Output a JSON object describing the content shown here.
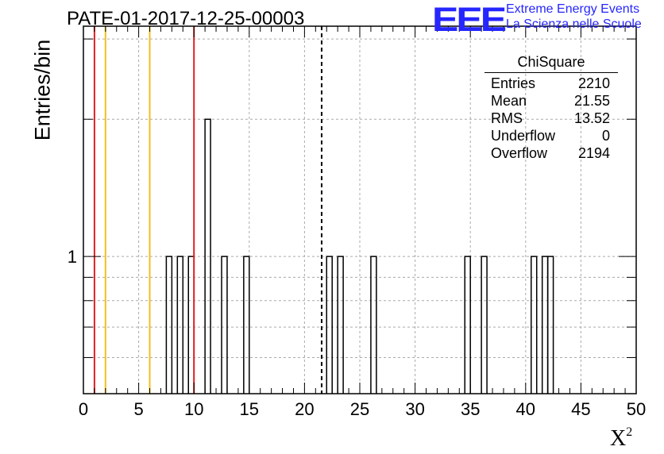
{
  "chart_data": {
    "type": "bar",
    "title": "PATE-01-2017-12-25-00003",
    "xlabel": "X",
    "xlabel_superscript": "2",
    "ylabel": "Entries/bin",
    "xlim": [
      0,
      50
    ],
    "ylog": true,
    "ylim": [
      0.5,
      3.2
    ],
    "x_ticks": [
      "0",
      "5",
      "10",
      "15",
      "20",
      "25",
      "30",
      "35",
      "40",
      "45",
      "50"
    ],
    "y_ticks": [
      "1"
    ],
    "grid": true,
    "bin_width": 0.5,
    "bins": [
      {
        "x0": 7.5,
        "value": 1
      },
      {
        "x0": 8.5,
        "value": 1
      },
      {
        "x0": 9.5,
        "value": 1
      },
      {
        "x0": 11.0,
        "value": 2
      },
      {
        "x0": 12.5,
        "value": 1
      },
      {
        "x0": 14.5,
        "value": 1
      },
      {
        "x0": 22.0,
        "value": 1
      },
      {
        "x0": 23.0,
        "value": 1
      },
      {
        "x0": 26.0,
        "value": 1
      },
      {
        "x0": 34.5,
        "value": 1
      },
      {
        "x0": 36.0,
        "value": 1
      },
      {
        "x0": 40.5,
        "value": 1
      },
      {
        "x0": 41.5,
        "value": 1
      },
      {
        "x0": 42.0,
        "value": 1
      }
    ],
    "vertical_lines": [
      {
        "x": 1,
        "color": "#dd2222",
        "style": "solid"
      },
      {
        "x": 2,
        "color": "#f0c020",
        "style": "solid"
      },
      {
        "x": 6,
        "color": "#f0c020",
        "style": "solid"
      },
      {
        "x": 10,
        "color": "#dd2222",
        "style": "solid"
      },
      {
        "x": 21.55,
        "color": "#000000",
        "style": "dashed"
      }
    ],
    "stats": {
      "title": "ChiSquare",
      "rows": [
        {
          "label": "Entries",
          "value": "2210"
        },
        {
          "label": "Mean",
          "value": "21.55"
        },
        {
          "label": "RMS",
          "value": "13.52"
        },
        {
          "label": "Underflow",
          "value": "0"
        },
        {
          "label": "Overflow",
          "value": "2194"
        }
      ]
    }
  },
  "logo": {
    "text": "EEE",
    "line1": "Extreme Energy Events",
    "line2": "La Scienza nelle Scuole",
    "color": "#2626ff"
  }
}
